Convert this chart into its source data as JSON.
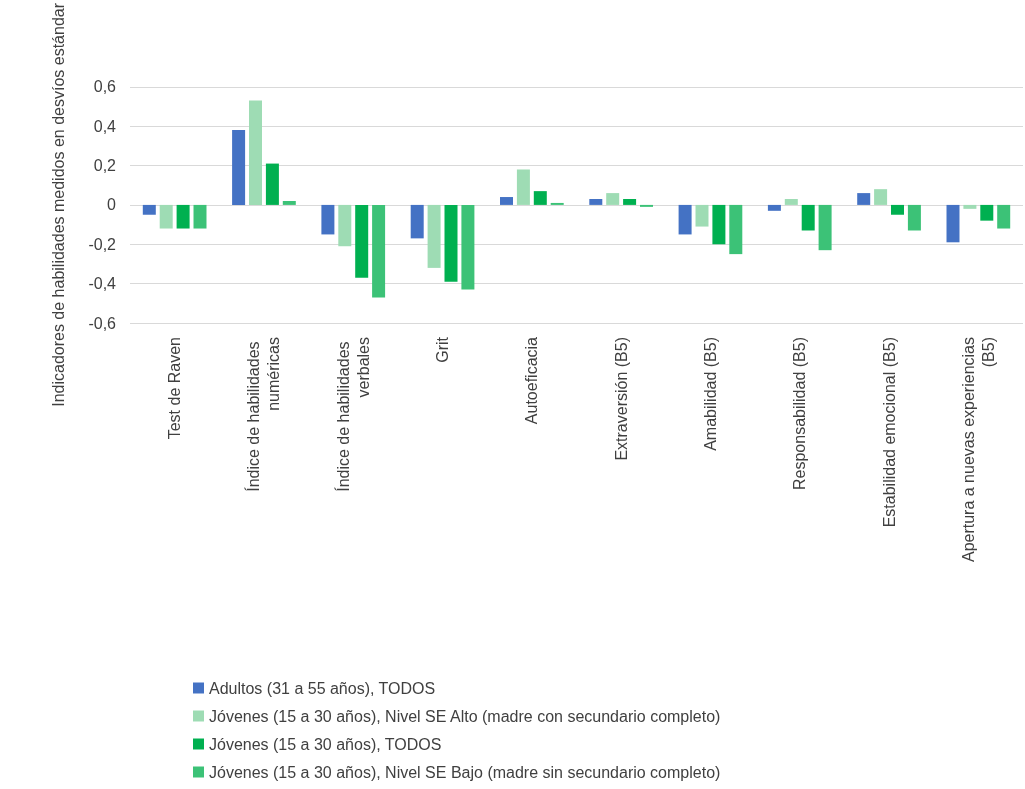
{
  "chart_data": {
    "type": "bar",
    "ylabel": "Indicadores de habilidades medidos en desvíos estándar",
    "categories": [
      "Test de Raven",
      "Índice de habilidades numéricas",
      "Índice de habilidades verbales",
      "Grit",
      "Autoeficacia",
      "Extraversión (B5)",
      "Amabilidad (B5)",
      "Responsabilidad (B5)",
      "Estabilidad emocional (B5)",
      "Apertura a nuevas experiencias (B5)"
    ],
    "series": [
      {
        "name": "Adultos (31 a 55 años), TODOS",
        "color": "#4472c4",
        "values": [
          -0.05,
          0.38,
          -0.15,
          -0.17,
          0.04,
          0.03,
          -0.15,
          -0.03,
          0.06,
          -0.19
        ]
      },
      {
        "name": "Jóvenes (15 a 30 años), Nivel SE Alto (madre con secundario completo)",
        "color": "#9edcb4",
        "values": [
          -0.12,
          0.53,
          -0.21,
          -0.32,
          0.18,
          0.06,
          -0.11,
          0.03,
          0.08,
          -0.02
        ]
      },
      {
        "name": "Jóvenes (15 a 30 años), TODOS",
        "color": "#00b050",
        "values": [
          -0.12,
          0.21,
          -0.37,
          -0.39,
          0.07,
          0.03,
          -0.2,
          -0.13,
          -0.05,
          -0.08
        ]
      },
      {
        "name": "Jóvenes (15 a 30 años), Nivel SE Bajo (madre sin secundario completo)",
        "color": "#3cc277",
        "values": [
          -0.12,
          0.02,
          -0.47,
          -0.43,
          0.01,
          -0.01,
          -0.25,
          -0.23,
          -0.13,
          -0.12
        ]
      }
    ],
    "ylim": [
      -0.6,
      0.6
    ],
    "yticks": [
      {
        "value": -0.6,
        "label": "-0,6"
      },
      {
        "value": -0.4,
        "label": "-0,4"
      },
      {
        "value": -0.2,
        "label": "-0,2"
      },
      0,
      {
        "value": 0.2,
        "label": "0,2"
      },
      {
        "value": 0.4,
        "label": "0,4"
      },
      {
        "value": 0.6,
        "label": "0,6"
      }
    ],
    "grid": true,
    "legend": "bottom"
  }
}
